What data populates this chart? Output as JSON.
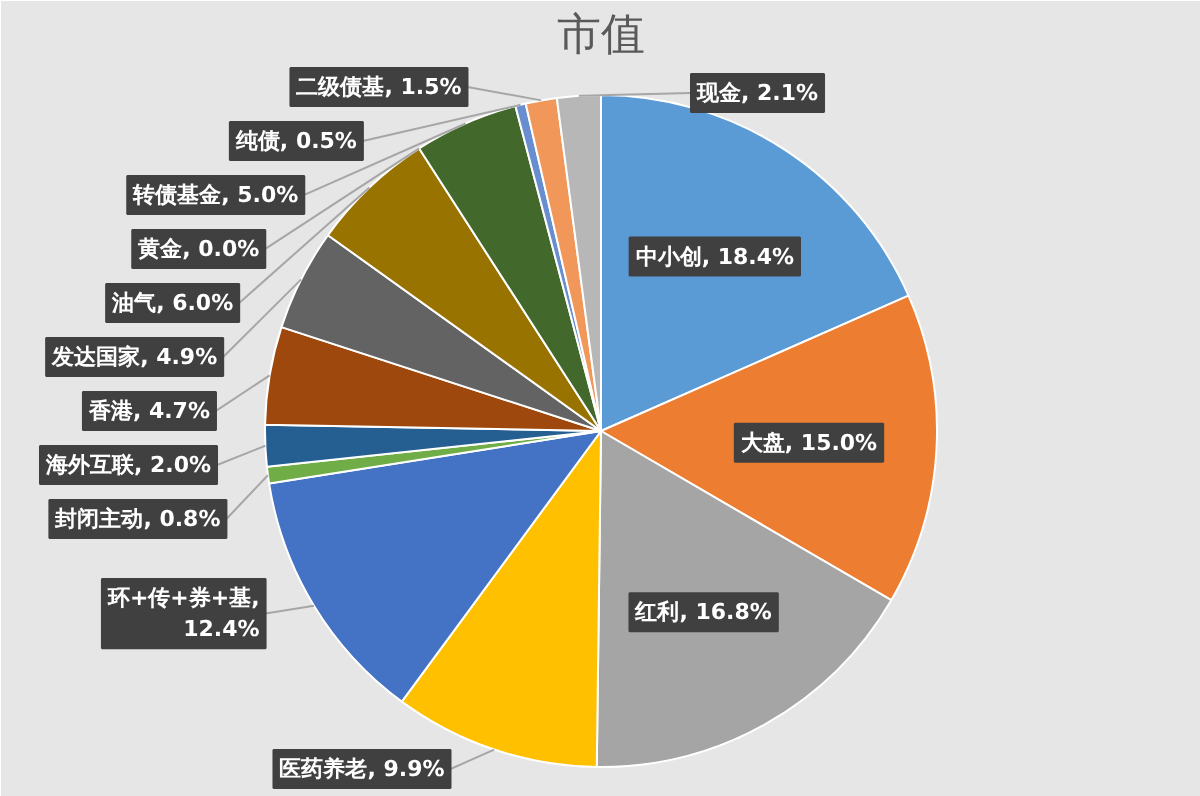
{
  "chart_data": {
    "type": "pie",
    "title": "市值",
    "categories": [
      "中小创",
      "大盘",
      "红利",
      "医药养老",
      "环+传+券+基",
      "封闭主动",
      "海外互联",
      "香港",
      "发达国家",
      "油气",
      "黄金",
      "转债基金",
      "纯债",
      "二级债基",
      "现金"
    ],
    "values": [
      18.4,
      15.0,
      16.8,
      9.9,
      12.4,
      0.8,
      2.0,
      4.7,
      4.9,
      6.0,
      0.0,
      5.0,
      0.5,
      1.5,
      2.1
    ],
    "colors": [
      "#5b9bd5",
      "#ed7d31",
      "#a5a5a5",
      "#ffc000",
      "#4472c4",
      "#70ad47",
      "#255e91",
      "#9e480e",
      "#636363",
      "#997300",
      "#264478",
      "#43682b",
      "#698ed0",
      "#f1975a",
      "#b7b7b7"
    ],
    "value_labels": [
      ", 18.4%",
      ", 15.0%",
      ", 16.8%",
      ", 9.9%",
      ", 12.4%",
      ", 0.8%",
      ", 2.0%",
      ", 4.7%",
      ", 4.9%",
      ", 6.0%",
      ", 0.0%",
      ", 5.0%",
      ", 0.5%",
      ", 1.5%",
      ", 2.1%"
    ]
  }
}
